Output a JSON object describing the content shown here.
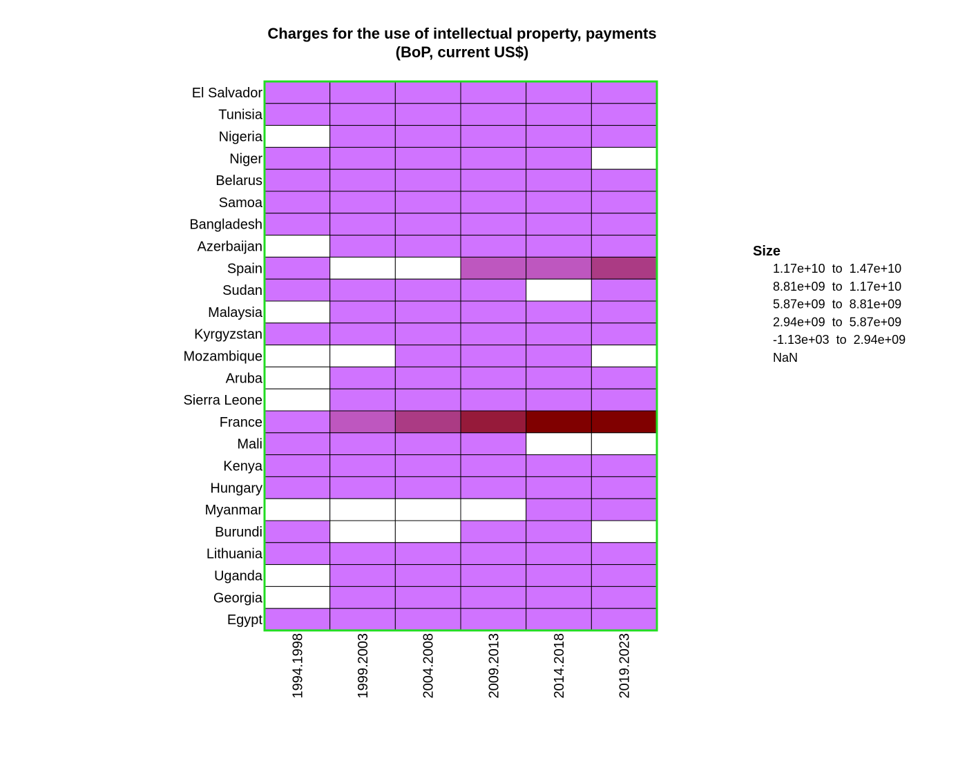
{
  "chart_data": {
    "type": "heatmap",
    "title": "Charges for the use of intellectual property, payments\n(BoP, current US$)",
    "rows": [
      "El Salvador",
      "Tunisia",
      "Nigeria",
      "Niger",
      "Belarus",
      "Samoa",
      "Bangladesh",
      "Azerbaijan",
      "Spain",
      "Sudan",
      "Malaysia",
      "Kyrgyzstan",
      "Mozambique",
      "Aruba",
      "Sierra Leone",
      "France",
      "Mali",
      "Kenya",
      "Hungary",
      "Myanmar",
      "Burundi",
      "Lithuania",
      "Uganda",
      "Georgia",
      "Egypt"
    ],
    "columns": [
      "1994.1998",
      "1999.2003",
      "2004.2008",
      "2009.2013",
      "2014.2018",
      "2019.2023"
    ],
    "values": [
      [
        0,
        0,
        0,
        0,
        0,
        0
      ],
      [
        0,
        0,
        0,
        0,
        0,
        0
      ],
      [
        null,
        0,
        0,
        0,
        0,
        0
      ],
      [
        0,
        0,
        0,
        0,
        0,
        null
      ],
      [
        0,
        0,
        0,
        0,
        0,
        0
      ],
      [
        0,
        0,
        0,
        0,
        0,
        0
      ],
      [
        0,
        0,
        0,
        0,
        0,
        0
      ],
      [
        null,
        0,
        0,
        0,
        0,
        0
      ],
      [
        0,
        null,
        null,
        1,
        1,
        2
      ],
      [
        0,
        0,
        0,
        0,
        null,
        0
      ],
      [
        null,
        0,
        0,
        0,
        0,
        0
      ],
      [
        0,
        0,
        0,
        0,
        0,
        0
      ],
      [
        null,
        null,
        0,
        0,
        0,
        null
      ],
      [
        null,
        0,
        0,
        0,
        0,
        0
      ],
      [
        null,
        0,
        0,
        0,
        0,
        0
      ],
      [
        0,
        1,
        2,
        3,
        4,
        4
      ],
      [
        0,
        0,
        0,
        0,
        null,
        null
      ],
      [
        0,
        0,
        0,
        0,
        0,
        0
      ],
      [
        0,
        0,
        0,
        0,
        0,
        0
      ],
      [
        null,
        null,
        null,
        null,
        0,
        0
      ],
      [
        0,
        null,
        null,
        0,
        0,
        null
      ],
      [
        0,
        0,
        0,
        0,
        0,
        0
      ],
      [
        null,
        0,
        0,
        0,
        0,
        0
      ],
      [
        null,
        0,
        0,
        0,
        0,
        0
      ],
      [
        0,
        0,
        0,
        0,
        0,
        0
      ]
    ],
    "value_encoding": "legend bin index: 0 = -1.13e+03 to 2.94e+09, 4 = 1.17e+10 to 1.47e+10, null = NaN",
    "legend": {
      "title": "Size",
      "position": "right",
      "entries": [
        {
          "label": "1.17e+10  to  1.47e+10",
          "color": "#800000"
        },
        {
          "label": "8.81e+09  to  1.17e+10",
          "color": "#961a3a"
        },
        {
          "label": "5.87e+09  to  8.81e+09",
          "color": "#ab3b84"
        },
        {
          "label": "2.94e+09  to  5.87e+09",
          "color": "#be57bf"
        },
        {
          "label": "-1.13e+03  to  2.94e+09",
          "color": "#d073ff"
        },
        {
          "label": "NaN",
          "color": "#ffffff"
        }
      ]
    },
    "colors": {
      "bins": [
        "#d073ff",
        "#be57bf",
        "#ab3b84",
        "#961a3a",
        "#800000"
      ],
      "nan": "#ffffff",
      "frame": "#22dd22",
      "cell_border": "#000000"
    }
  }
}
